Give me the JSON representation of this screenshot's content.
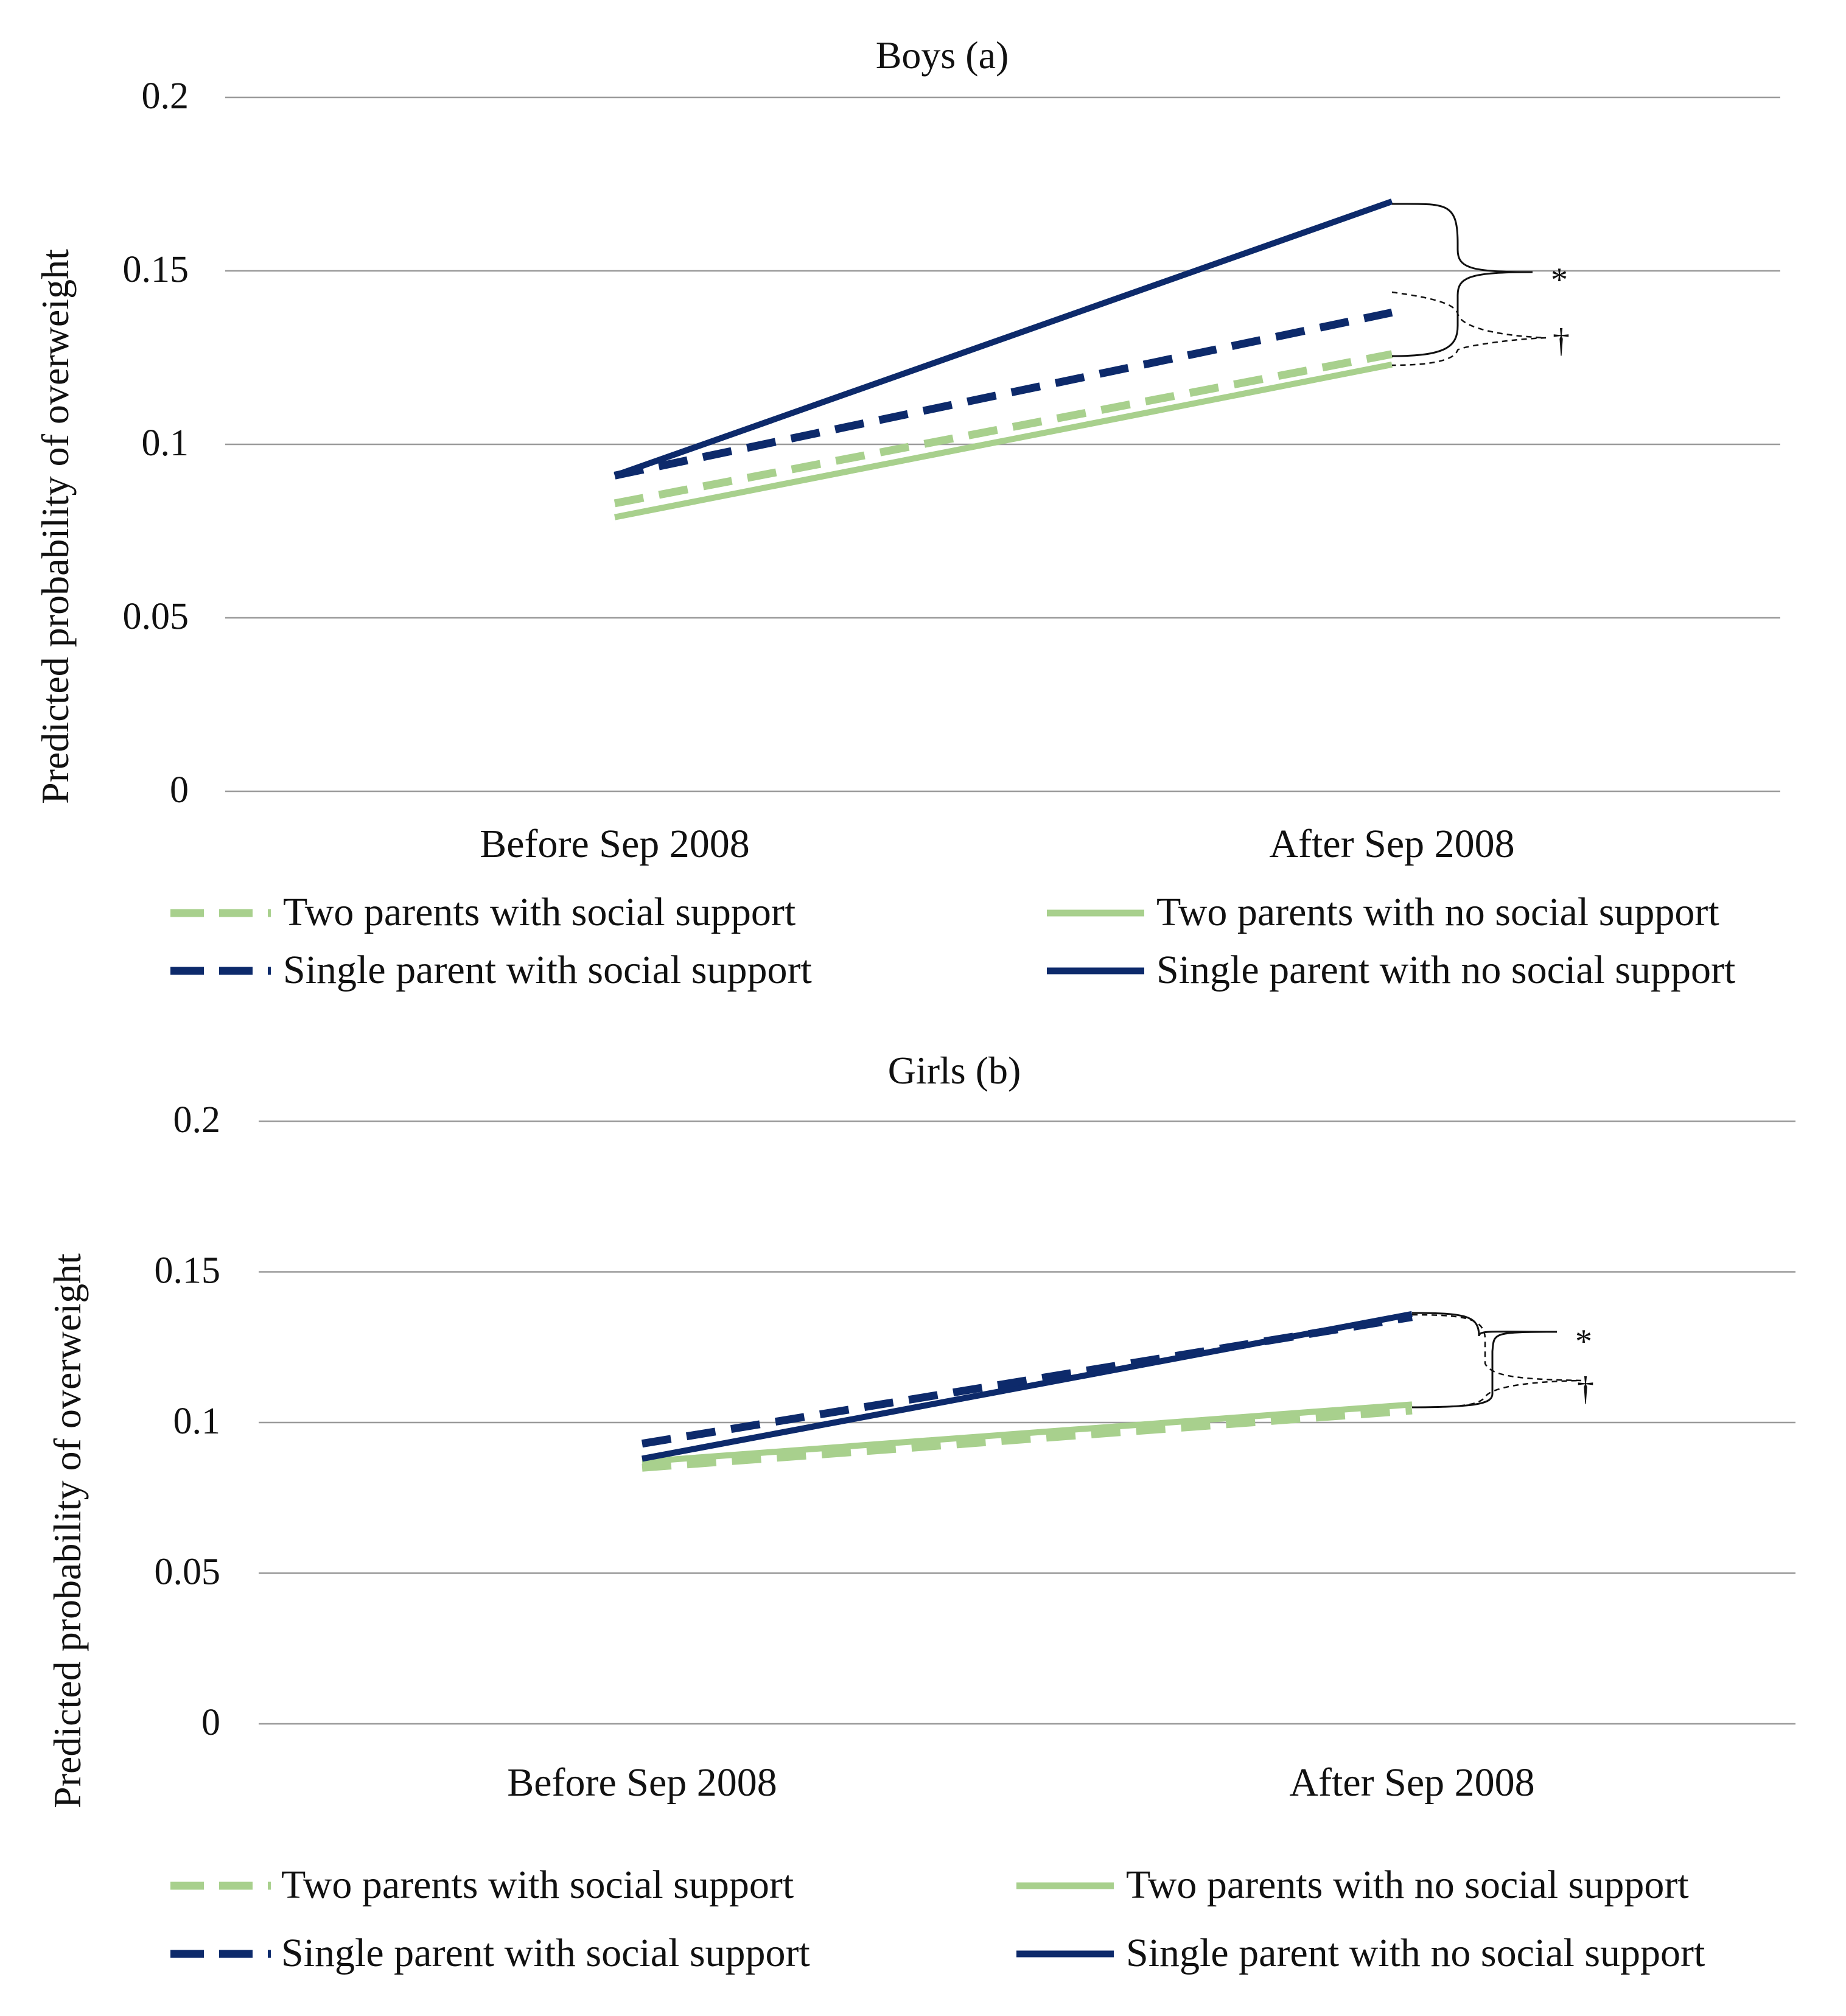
{
  "chart_data": [
    {
      "type": "line",
      "title": "Boys (a)",
      "xlabel": "",
      "ylabel": "Predicted probability of  overweight",
      "categories": [
        "Before Sep 2008",
        "After Sep 2008"
      ],
      "ylim": [
        0,
        0.2
      ],
      "yticks": [
        "0",
        "0.05",
        "0.1",
        "0.15",
        "0.2"
      ],
      "grid": true,
      "legend_position": "bottom",
      "series": [
        {
          "name": "Two parents with social support",
          "values": [
            0.083,
            0.126
          ],
          "color": "#a8d08d",
          "dash": "dashed"
        },
        {
          "name": "Two parents with no social support",
          "values": [
            0.079,
            0.123
          ],
          "color": "#a8d08d",
          "dash": "solid"
        },
        {
          "name": "Single parent with social support",
          "values": [
            0.091,
            0.138
          ],
          "color": "#0d2a6b",
          "dash": "dashed"
        },
        {
          "name": "Single parent with no social support",
          "values": [
            0.091,
            0.17
          ],
          "color": "#0d2a6b",
          "dash": "solid"
        }
      ],
      "annotations": [
        "*",
        "†"
      ]
    },
    {
      "type": "line",
      "title": "Girls (b)",
      "xlabel": "",
      "ylabel": "Predicted probability of overweight",
      "categories": [
        "Before Sep 2008",
        "After Sep 2008"
      ],
      "ylim": [
        0,
        0.2
      ],
      "yticks": [
        "0",
        "0.05",
        "0.1",
        "0.15",
        "0.2"
      ],
      "grid": true,
      "legend_position": "bottom",
      "series": [
        {
          "name": "Two parents with social support",
          "values": [
            0.085,
            0.104
          ],
          "color": "#a8d08d",
          "dash": "dashed"
        },
        {
          "name": "Two parents with no social support",
          "values": [
            0.087,
            0.106
          ],
          "color": "#a8d08d",
          "dash": "solid"
        },
        {
          "name": "Single parent with social support",
          "values": [
            0.093,
            0.135
          ],
          "color": "#0d2a6b",
          "dash": "dashed"
        },
        {
          "name": "Single parent with no social support",
          "values": [
            0.088,
            0.136
          ],
          "color": "#0d2a6b",
          "dash": "solid"
        }
      ],
      "annotations": [
        "*",
        "†"
      ]
    }
  ]
}
